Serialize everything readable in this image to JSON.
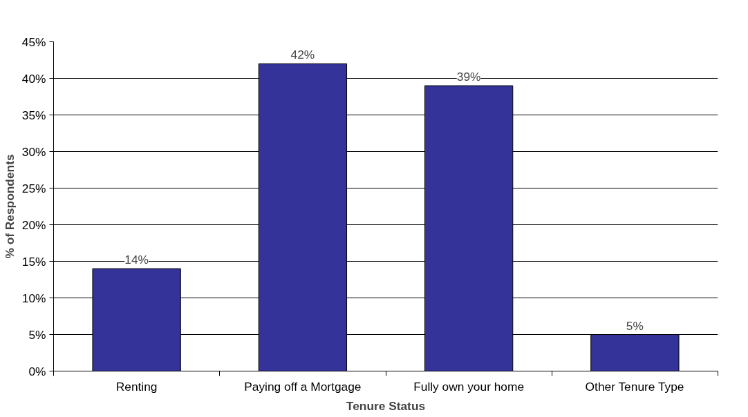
{
  "chart_data": {
    "type": "bar",
    "xlabel": "Tenure Status",
    "ylabel": "% of Respondents",
    "categories": [
      "Renting",
      "Paying off a Mortgage",
      "Fully own your home",
      "Other Tenure Type"
    ],
    "values": [
      14,
      42,
      39,
      5
    ],
    "value_labels": [
      "14%",
      "42%",
      "39%",
      "5%"
    ],
    "color": "#333399",
    "ylim": [
      0,
      45
    ],
    "yticks": [
      {
        "value": 0,
        "label": "0%"
      },
      {
        "value": 5,
        "label": "5%"
      },
      {
        "value": 10,
        "label": "10%"
      },
      {
        "value": 15,
        "label": "15%"
      },
      {
        "value": 20,
        "label": "20%"
      },
      {
        "value": 25,
        "label": "25%"
      },
      {
        "value": 30,
        "label": "30%"
      },
      {
        "value": 35,
        "label": "35%"
      },
      {
        "value": 40,
        "label": "40%"
      },
      {
        "value": 45,
        "label": "45%"
      }
    ],
    "grid": "y"
  }
}
